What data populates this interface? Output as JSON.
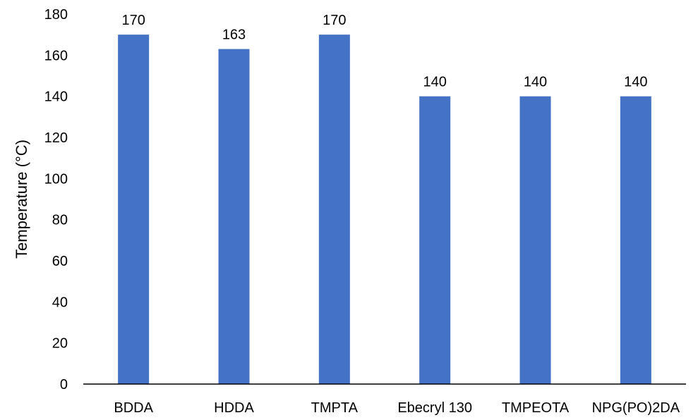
{
  "chart_data": {
    "type": "bar",
    "title": "",
    "xlabel": "",
    "ylabel": "Temperature (°C)",
    "categories": [
      "BDDA",
      "HDDA",
      "TMPTA",
      "Ebecryl 130",
      "TMPEOTA",
      "NPG(PO)2DA"
    ],
    "values": [
      170,
      163,
      170,
      140,
      140,
      140
    ],
    "data_labels": [
      "170",
      "163",
      "170",
      "140",
      "140",
      "140"
    ],
    "ylim": [
      0,
      180
    ],
    "yticks": [
      0,
      20,
      40,
      60,
      80,
      100,
      120,
      140,
      160,
      180
    ],
    "grid": false,
    "legend": "none",
    "bar_color": "#4472C4",
    "axis_color": "#000000"
  }
}
